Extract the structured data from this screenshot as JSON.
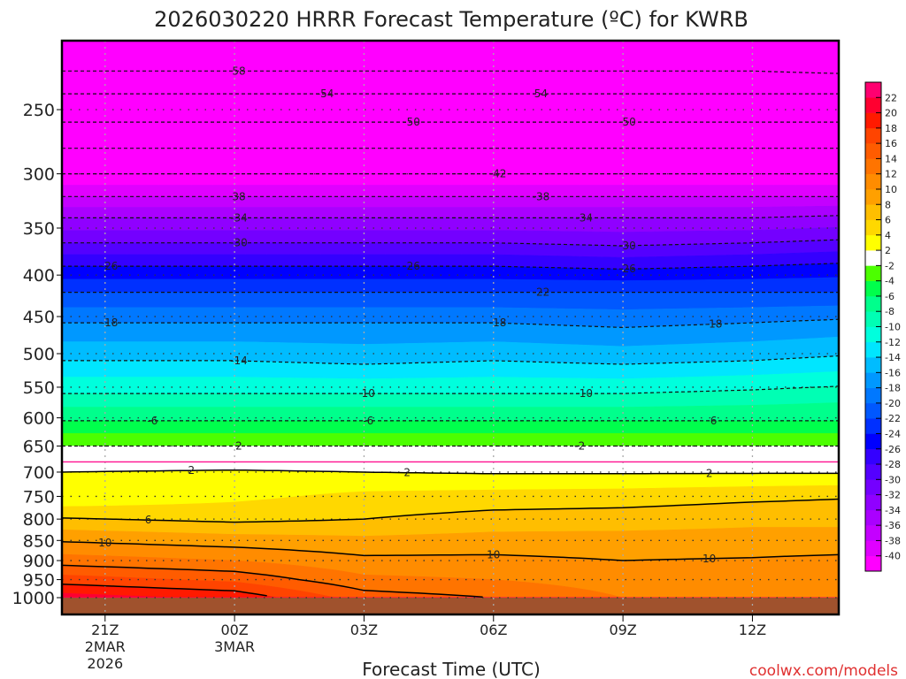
{
  "chart_data": {
    "type": "heatmap",
    "title": "2026030220 HRRR Forecast Temperature (ºC) for KWRB",
    "xlabel": "Forecast Time (UTC)",
    "ylabel": "",
    "credit": "coolwx.com/models",
    "x_range_hours_from_20Z": [
      0,
      18
    ],
    "y_range_hPa": [
      205,
      1049
    ],
    "y_scale": "log",
    "y_ticks": [
      250,
      300,
      350,
      400,
      450,
      500,
      550,
      600,
      650,
      700,
      750,
      800,
      850,
      900,
      950,
      1000
    ],
    "x_ticks": [
      {
        "hour": 1,
        "lines": [
          "21Z",
          "2MAR",
          "2026"
        ]
      },
      {
        "hour": 4,
        "lines": [
          "00Z",
          "3MAR"
        ]
      },
      {
        "hour": 7,
        "lines": [
          "03Z"
        ]
      },
      {
        "hour": 10,
        "lines": [
          "06Z"
        ]
      },
      {
        "hour": 13,
        "lines": [
          "09Z"
        ]
      },
      {
        "hour": 16,
        "lines": [
          "12Z"
        ]
      }
    ],
    "levels_hPa": [
      205,
      224,
      239,
      259,
      279,
      300,
      320,
      340,
      365,
      390,
      420,
      458,
      510,
      560,
      605,
      650,
      680,
      700,
      750,
      800,
      850,
      900,
      950,
      1000
    ],
    "columns": [
      {
        "hour": 0,
        "temps": [
          -62,
          -58,
          -54,
          -50,
          -46,
          -42,
          -38,
          -34,
          -30,
          -26,
          -22,
          -18,
          -14,
          -10,
          -6,
          -2,
          0,
          2,
          2.2,
          6.2,
          9.8,
          13,
          17,
          21
        ]
      },
      {
        "hour": 4,
        "temps": [
          -62,
          -58,
          -54,
          -50,
          -46,
          -42,
          -38,
          -34,
          -30,
          -26,
          -22,
          -18,
          -14,
          -10,
          -6,
          -2,
          0,
          2.5,
          3.5,
          5.5,
          9,
          12,
          15.5,
          19.5
        ]
      },
      {
        "hour": 7,
        "temps": [
          -62,
          -58,
          -54,
          -50,
          -46,
          -42,
          -38,
          -34,
          -30,
          -26,
          -22,
          -18,
          -14.5,
          -10,
          -6,
          -2,
          0,
          2,
          4.5,
          6,
          8.5,
          10.5,
          12.5,
          15
        ]
      },
      {
        "hour": 10,
        "temps": [
          -62,
          -58,
          -54,
          -50,
          -46,
          -42,
          -38,
          -34,
          -30,
          -26,
          -22,
          -18,
          -14,
          -10,
          -6,
          -2,
          0,
          1.8,
          4.8,
          6.8,
          8.8,
          10.5,
          12,
          14
        ]
      },
      {
        "hour": 13,
        "temps": [
          -62,
          -58,
          -54,
          -50,
          -46,
          -42,
          -38,
          -34,
          -30.5,
          -26.5,
          -22,
          -18.5,
          -14.5,
          -10,
          -6,
          -2,
          0,
          1.8,
          5,
          7,
          8.8,
          10,
          11,
          12
        ]
      },
      {
        "hour": 16,
        "temps": [
          -62,
          -58,
          -54,
          -50,
          -46,
          -42,
          -38,
          -34,
          -30,
          -26,
          -22,
          -18,
          -14,
          -9.5,
          -6,
          -2,
          0,
          1.8,
          5.5,
          7.5,
          8.8,
          10.2,
          11,
          12
        ]
      },
      {
        "hour": 18,
        "temps": [
          -63,
          -58.5,
          -54,
          -50,
          -46,
          -42,
          -38,
          -33.5,
          -29.5,
          -25.5,
          -22,
          -17.5,
          -13.5,
          -9,
          -6,
          -2,
          0,
          1.8,
          5.8,
          7.5,
          8.8,
          10.5,
          11,
          12
        ]
      }
    ],
    "color_levels": [
      -40,
      -38,
      -36,
      -34,
      -32,
      -30,
      -28,
      -26,
      -24,
      -22,
      -20,
      -18,
      -16,
      -14,
      -12,
      -10,
      -8,
      -6,
      -4,
      -2,
      2,
      4,
      6,
      8,
      10,
      12,
      14,
      16,
      18,
      20,
      22
    ],
    "colors": [
      "#ff00ff",
      "#e000ff",
      "#c400ff",
      "#aa00ff",
      "#9000ff",
      "#7400ff",
      "#5400ff",
      "#3400ff",
      "#0000ff",
      "#0030ff",
      "#0058ff",
      "#0078ff",
      "#0098ff",
      "#00bcff",
      "#00e6ff",
      "#00ffdd",
      "#00ffb4",
      "#00ff8c",
      "#00ff4c",
      "#4cff00",
      "#ffffff",
      "#ffff00",
      "#ffd800",
      "#ffbe00",
      "#ffa000",
      "#ff8c00",
      "#ff7400",
      "#ff5c00",
      "#ff4400",
      "#ff1a00",
      "#ff0030",
      "#ff0070"
    ],
    "colorbar_labels": [
      "22",
      "20",
      "18",
      "16",
      "14",
      "12",
      "10",
      "8",
      "6",
      "4",
      "2",
      "-2",
      "-4",
      "-6",
      "-8",
      "-10",
      "-12",
      "-14",
      "-16",
      "-18",
      "-20",
      "-22",
      "-24",
      "-26",
      "-28",
      "-30",
      "-32",
      "-34",
      "-36",
      "-38",
      "-40"
    ],
    "contour_values": [
      -58,
      -54,
      -50,
      -46,
      -42,
      -38,
      -34,
      -30,
      -26,
      -22,
      -18,
      -14,
      -10,
      -6,
      -2,
      0,
      2,
      6,
      10,
      14,
      18
    ],
    "contour_labels": [
      {
        "value": -58,
        "hour": 4.1,
        "text": "58"
      },
      {
        "value": -54,
        "hour": 6.1,
        "text": "-54"
      },
      {
        "value": -54,
        "hour": 11.1,
        "text": "54"
      },
      {
        "value": -50,
        "hour": 8.1,
        "text": "-50"
      },
      {
        "value": -50,
        "hour": 13.1,
        "text": "-50"
      },
      {
        "value": -42,
        "hour": 10.1,
        "text": "-42"
      },
      {
        "value": -38,
        "hour": 4.1,
        "text": "38"
      },
      {
        "value": -38,
        "hour": 11.1,
        "text": "-38"
      },
      {
        "value": -34,
        "hour": 4.1,
        "text": "-34"
      },
      {
        "value": -34,
        "hour": 12.1,
        "text": "-34"
      },
      {
        "value": -30,
        "hour": 4.1,
        "text": "-30"
      },
      {
        "value": -30,
        "hour": 13.1,
        "text": "-30"
      },
      {
        "value": -26,
        "hour": 1.1,
        "text": "-26"
      },
      {
        "value": -26,
        "hour": 8.1,
        "text": "-26"
      },
      {
        "value": -26,
        "hour": 13.1,
        "text": "-26"
      },
      {
        "value": -22,
        "hour": 11.1,
        "text": "-22"
      },
      {
        "value": -18,
        "hour": 1.1,
        "text": "-18"
      },
      {
        "value": -18,
        "hour": 10.1,
        "text": "-18"
      },
      {
        "value": -18,
        "hour": 15.1,
        "text": "-18"
      },
      {
        "value": -14,
        "hour": 4.1,
        "text": "-14"
      },
      {
        "value": -10,
        "hour": 7.1,
        "text": "10"
      },
      {
        "value": -10,
        "hour": 12.1,
        "text": "-10"
      },
      {
        "value": -6,
        "hour": 2.1,
        "text": "-6"
      },
      {
        "value": -6,
        "hour": 7.1,
        "text": "-6"
      },
      {
        "value": -6,
        "hour": 15.1,
        "text": "6"
      },
      {
        "value": -2,
        "hour": 4.1,
        "text": "2"
      },
      {
        "value": -2,
        "hour": 12,
        "text": "-2"
      },
      {
        "value": 2,
        "hour": 3,
        "text": "2"
      },
      {
        "value": 2,
        "hour": 8,
        "text": "2"
      },
      {
        "value": 2,
        "hour": 15,
        "text": "2"
      },
      {
        "value": 6,
        "hour": 2,
        "text": "6"
      },
      {
        "value": 10,
        "hour": 1,
        "text": "10"
      },
      {
        "value": 10,
        "hour": 10,
        "text": "10"
      },
      {
        "value": 10,
        "hour": 15,
        "text": "10"
      }
    ],
    "ground_color": "#a0522d",
    "credit_color": "#e03030"
  }
}
